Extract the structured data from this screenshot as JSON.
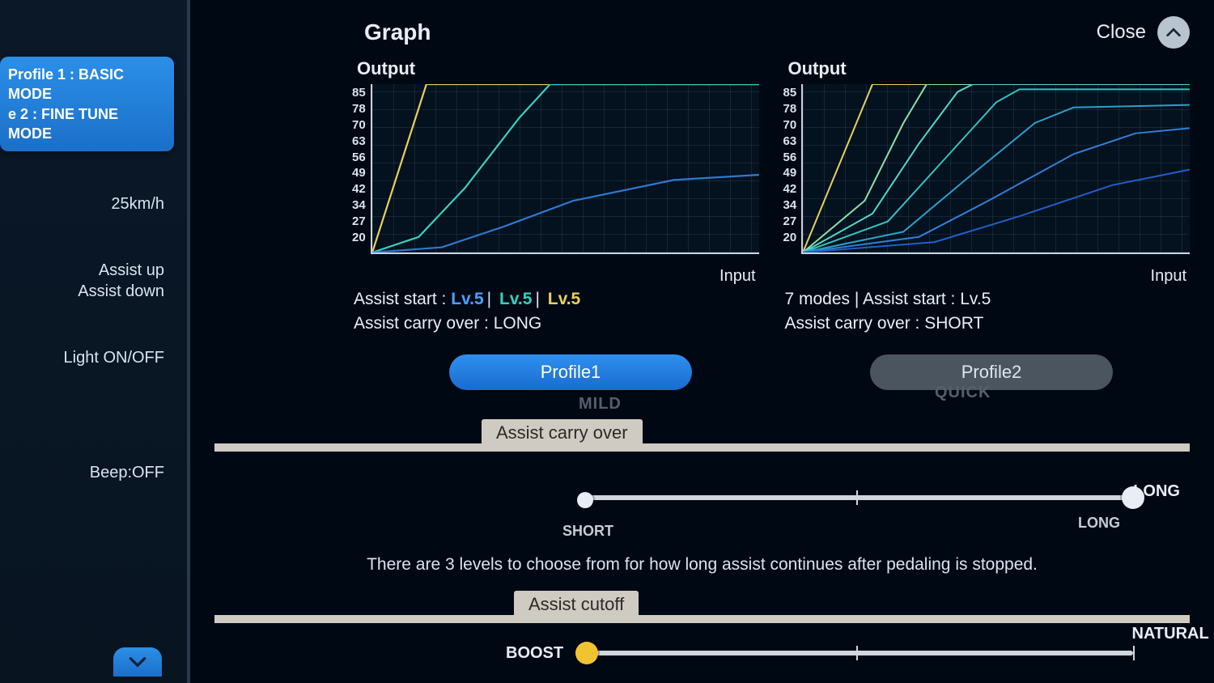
{
  "sidebar": {
    "profile_line1": "Profile 1 : BASIC MODE",
    "profile_line2": "e 2 : FINE TUNE MODE",
    "items": [
      {
        "label": "25km/h"
      },
      {
        "label_top": "Assist up",
        "label_bottom": "Assist down"
      },
      {
        "label": "Light ON/OFF"
      },
      {
        "label": "Beep:OFF"
      }
    ]
  },
  "header": {
    "title": "Graph",
    "close": "Close"
  },
  "charts": {
    "output_label": "Output",
    "input_label": "Input",
    "yticks": [
      "85",
      "78",
      "70",
      "63",
      "56",
      "49",
      "42",
      "34",
      "27",
      "20"
    ],
    "ylim": [
      20,
      85
    ],
    "left": {
      "info_prefix": "Assist start : ",
      "lv_blue": "Lv.5",
      "lv_teal": "Lv.5",
      "lv_yellow": "Lv.5",
      "info_line2": "Assist carry over : LONG",
      "curves": [
        {
          "color": "#e8d060",
          "width": 2.2,
          "pts": [
            [
              0,
              20
            ],
            [
              14,
              85
            ],
            [
              100,
              85
            ]
          ]
        },
        {
          "color": "#36d0c0",
          "width": 2.2,
          "pts": [
            [
              0,
              20
            ],
            [
              12,
              26
            ],
            [
              24,
              45
            ],
            [
              38,
              72
            ],
            [
              46,
              85
            ],
            [
              100,
              85
            ]
          ]
        },
        {
          "color": "#2d7ad0",
          "width": 2.2,
          "pts": [
            [
              0,
              20
            ],
            [
              18,
              22
            ],
            [
              34,
              30
            ],
            [
              52,
              40
            ],
            [
              78,
              48
            ],
            [
              100,
              50
            ]
          ]
        }
      ]
    },
    "right": {
      "info_line1": "7 modes | Assist start : Lv.5",
      "info_line2": "Assist carry over : SHORT",
      "curves": [
        {
          "color": "#e8d060",
          "width": 2.0,
          "pts": [
            [
              0,
              20
            ],
            [
              18,
              85
            ],
            [
              100,
              85
            ]
          ]
        },
        {
          "color": "#8be0a8",
          "width": 2.0,
          "pts": [
            [
              0,
              20
            ],
            [
              16,
              40
            ],
            [
              26,
              70
            ],
            [
              32,
              85
            ],
            [
              100,
              85
            ]
          ]
        },
        {
          "color": "#50d8c8",
          "width": 2.0,
          "pts": [
            [
              0,
              20
            ],
            [
              18,
              35
            ],
            [
              30,
              62
            ],
            [
              40,
              82
            ],
            [
              44,
              85
            ],
            [
              100,
              85
            ]
          ]
        },
        {
          "color": "#36c0c0",
          "width": 2.0,
          "pts": [
            [
              0,
              20
            ],
            [
              22,
              32
            ],
            [
              36,
              55
            ],
            [
              50,
              78
            ],
            [
              56,
              83
            ],
            [
              100,
              83
            ]
          ]
        },
        {
          "color": "#2aa0c8",
          "width": 2.0,
          "pts": [
            [
              0,
              20
            ],
            [
              26,
              28
            ],
            [
              42,
              48
            ],
            [
              60,
              70
            ],
            [
              70,
              76
            ],
            [
              100,
              77
            ]
          ]
        },
        {
          "color": "#3080d8",
          "width": 2.0,
          "pts": [
            [
              0,
              20
            ],
            [
              30,
              26
            ],
            [
              48,
              40
            ],
            [
              70,
              58
            ],
            [
              86,
              66
            ],
            [
              100,
              68
            ]
          ]
        },
        {
          "color": "#2060c8",
          "width": 2.0,
          "pts": [
            [
              0,
              20
            ],
            [
              34,
              24
            ],
            [
              56,
              34
            ],
            [
              80,
              46
            ],
            [
              100,
              52
            ]
          ]
        }
      ]
    }
  },
  "profiles": {
    "p1": "Profile1",
    "p2": "Profile2",
    "ghost_left": "MILD",
    "ghost_right": "QUICK"
  },
  "slider1": {
    "section": "Assist carry over",
    "left_label": "SHORT",
    "right_label": "LONG",
    "right_sub": "LONG",
    "value_pct": 100,
    "start_handle_pct": 0,
    "description": "There are 3 levels to choose from for how long assist continues after pedaling is stopped."
  },
  "slider2": {
    "section": "Assist cutoff",
    "left_label": "BOOST",
    "right_label": "NATURAL (Default)",
    "value_pct": 0
  },
  "colors": {
    "bg": "#000814",
    "accent": "#2b8fe8",
    "track": "#cfd6dc",
    "handle_yellow": "#f0c430"
  }
}
